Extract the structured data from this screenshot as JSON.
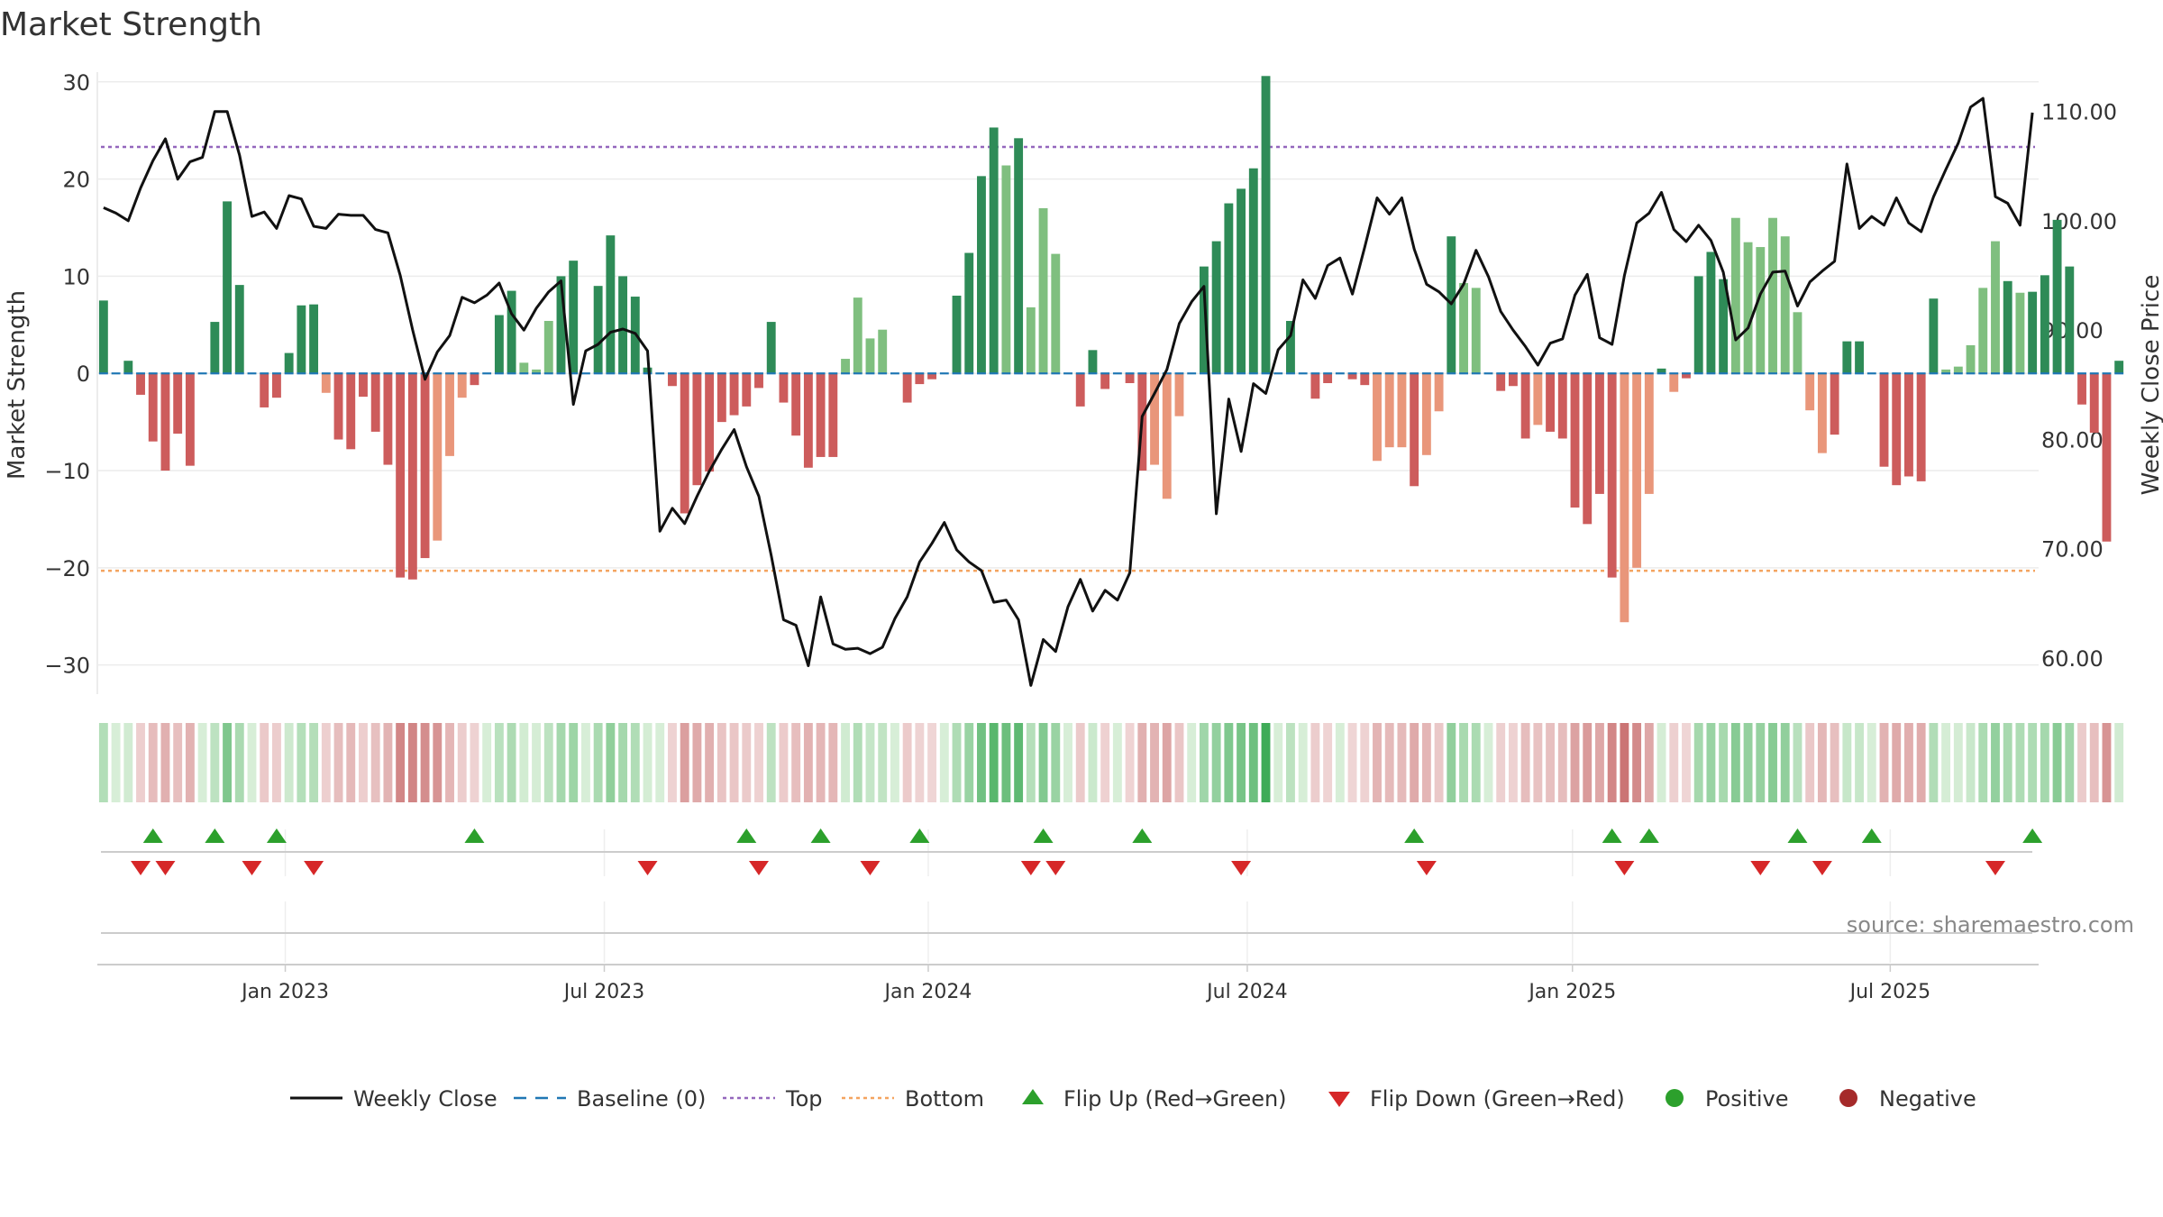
{
  "chart_data": {
    "type": "bar",
    "title": "Market Strength",
    "ylabel_left": "Market Strength",
    "ylabel_right": "Weekly Close Price",
    "left_ylim": [
      -33,
      31
    ],
    "left_yticks": [
      30,
      20,
      10,
      0,
      -10,
      -20,
      -30
    ],
    "left_ytick_labels": [
      "30",
      "20",
      "10",
      "0",
      "−10",
      "−20",
      "−30"
    ],
    "right_ylim": [
      56.7,
      113.6
    ],
    "right_yticks": [
      110,
      100,
      90,
      80,
      70,
      60
    ],
    "right_ytick_labels": [
      "110.00",
      "100.00",
      "90.00",
      "80.00",
      "70.00",
      "60.00"
    ],
    "x_start_index": 0,
    "x_end_index": 156,
    "x_ticks": [
      {
        "label": "Jan 2023",
        "index": 14.7
      },
      {
        "label": "Jul 2023",
        "index": 40.5
      },
      {
        "label": "Jan 2024",
        "index": 66.7
      },
      {
        "label": "Jul 2024",
        "index": 92.5
      },
      {
        "label": "Jan 2025",
        "index": 118.8
      },
      {
        "label": "Jul 2025",
        "index": 144.5
      }
    ],
    "top_line": 23.3,
    "bottom_line": -20.3,
    "baseline": 0,
    "colors": {
      "strong_pos": "#2e8b57",
      "weak_pos": "#7fbf7f",
      "strong_neg": "#cd5c5c",
      "weak_neg": "#e9967a",
      "close_line": "#111111",
      "baseline": "#1f77b4",
      "top": "#9467bd",
      "bottom": "#f4a460",
      "flip_up": "#2ca02c",
      "flip_down": "#d62728",
      "positive": "#2ca02c",
      "negative": "#a52a2a",
      "grid": "#ececec"
    },
    "strength": [
      7.5,
      0,
      1.3,
      -2.2,
      -7,
      -10,
      -6.2,
      -9.5,
      0,
      5.3,
      17.7,
      9.1,
      0,
      -3.5,
      -2.5,
      2.1,
      7,
      7.1,
      -2,
      -6.8,
      -7.8,
      -2.4,
      -6,
      -9.4,
      -21,
      -21.2,
      -19,
      -17.2,
      -8.5,
      -2.5,
      -1.2,
      0,
      6,
      8.5,
      1.1,
      0.4,
      5.4,
      10,
      11.6,
      0,
      9,
      14.2,
      10,
      7.9,
      0.6,
      0,
      -1.3,
      -14.4,
      -11.5,
      -10.1,
      -5,
      -4.3,
      -3.4,
      -1.5,
      5.3,
      -3,
      -6.4,
      -9.7,
      -8.6,
      -8.6,
      1.5,
      7.8,
      3.6,
      4.5,
      0,
      -3,
      -1.1,
      -0.6,
      0,
      8,
      12.4,
      20.3,
      25.3,
      21.4,
      24.2,
      6.8,
      17,
      12.3,
      0,
      -3.4,
      2.4,
      -1.6,
      0,
      -1,
      -10,
      -9.4,
      -12.9,
      -4.4,
      0,
      11,
      13.6,
      17.5,
      19,
      21.1,
      30.6,
      0,
      5.4,
      0,
      -2.6,
      -1,
      0,
      -0.6,
      -1.2,
      -9,
      -7.6,
      -7.6,
      -11.6,
      -8.4,
      -3.9,
      14.1,
      9.3,
      8.8,
      0,
      -1.8,
      -1.3,
      -6.7,
      -5.3,
      -6,
      -6.7,
      -13.8,
      -15.5,
      -12.4,
      -21,
      -25.6,
      -20,
      -12.4,
      0.5,
      -1.9,
      -0.5,
      10,
      12.5,
      9.7,
      16,
      13.5,
      13,
      16,
      14.1,
      6.3,
      -3.8,
      -8.2,
      -6.3,
      3.3,
      3.3,
      0,
      -9.6,
      -11.5,
      -10.6,
      -11.1,
      7.7,
      0.4,
      0.7,
      2.9,
      8.8,
      13.6,
      9.5,
      8.3,
      8.4,
      10.1,
      15.8,
      11,
      -3.2,
      -6.1,
      -17.3,
      1.3
    ],
    "weak": [
      18,
      27,
      28,
      29,
      34,
      35,
      36,
      60,
      61,
      62,
      63,
      73,
      75,
      76,
      77,
      85,
      86,
      87,
      103,
      104,
      105,
      107,
      108,
      110,
      111,
      116,
      123,
      124,
      125,
      127,
      132,
      133,
      134,
      135,
      136,
      137,
      138,
      139,
      149,
      150,
      151,
      152,
      153,
      155
    ],
    "close_points": [
      [
        0,
        101.2
      ],
      [
        1,
        100.7
      ],
      [
        2,
        100
      ],
      [
        3,
        103
      ],
      [
        4,
        105.5
      ],
      [
        5,
        107.5
      ],
      [
        6,
        103.8
      ],
      [
        7,
        105.4
      ],
      [
        8,
        105.8
      ],
      [
        9,
        110
      ],
      [
        10,
        110
      ],
      [
        11,
        106
      ],
      [
        12,
        100.4
      ],
      [
        13,
        100.8
      ],
      [
        14,
        99.3
      ],
      [
        15,
        102.3
      ],
      [
        16,
        102
      ],
      [
        17,
        99.5
      ],
      [
        18,
        99.3
      ],
      [
        19,
        100.6
      ],
      [
        20,
        100.5
      ],
      [
        21,
        100.5
      ],
      [
        22,
        99.2
      ],
      [
        23,
        98.9
      ],
      [
        24,
        95
      ],
      [
        25,
        90
      ],
      [
        26,
        85.5
      ],
      [
        27,
        88
      ],
      [
        28,
        89.5
      ],
      [
        29,
        93
      ],
      [
        30,
        92.5
      ],
      [
        31,
        93.2
      ],
      [
        32,
        94.3
      ],
      [
        33,
        91.5
      ],
      [
        34,
        90
      ],
      [
        35,
        92
      ],
      [
        36,
        93.5
      ],
      [
        37,
        94.5
      ],
      [
        38,
        83.2
      ],
      [
        39,
        88.1
      ],
      [
        40,
        88.7
      ],
      [
        41,
        89.8
      ],
      [
        42,
        90.1
      ],
      [
        43,
        89.7
      ],
      [
        44,
        88.1
      ],
      [
        45,
        71.6
      ],
      [
        46,
        73.7
      ],
      [
        47,
        72.3
      ],
      [
        48,
        74.8
      ],
      [
        49,
        77.1
      ],
      [
        50,
        79.1
      ],
      [
        51,
        80.9
      ],
      [
        52,
        77.5
      ],
      [
        53,
        74.8
      ],
      [
        54,
        69.4
      ],
      [
        55,
        63.5
      ],
      [
        56,
        63
      ],
      [
        57,
        59.3
      ],
      [
        58,
        65.6
      ],
      [
        59,
        61.3
      ],
      [
        60,
        60.8
      ],
      [
        61,
        60.9
      ],
      [
        62,
        60.4
      ],
      [
        63,
        61
      ],
      [
        64,
        63.6
      ],
      [
        65,
        65.6
      ],
      [
        66,
        68.8
      ],
      [
        67,
        70.5
      ],
      [
        68,
        72.4
      ],
      [
        69,
        69.9
      ],
      [
        70,
        68.8
      ],
      [
        71,
        68
      ],
      [
        72,
        65.1
      ],
      [
        73,
        65.3
      ],
      [
        74,
        63.5
      ],
      [
        75,
        57.5
      ],
      [
        76,
        61.7
      ],
      [
        77,
        60.6
      ],
      [
        78,
        64.7
      ],
      [
        79,
        67.2
      ],
      [
        80,
        64.3
      ],
      [
        81,
        66.2
      ],
      [
        82,
        65.3
      ],
      [
        83,
        67.8
      ],
      [
        84,
        82.1
      ],
      [
        85,
        84.2
      ],
      [
        86,
        86.4
      ],
      [
        87,
        90.6
      ],
      [
        88,
        92.6
      ],
      [
        89,
        94
      ],
      [
        90,
        73.2
      ],
      [
        91,
        83.7
      ],
      [
        92,
        78.9
      ],
      [
        93,
        85.1
      ],
      [
        94,
        84.2
      ],
      [
        95,
        88.2
      ],
      [
        96,
        89.5
      ],
      [
        97,
        94.6
      ],
      [
        98,
        92.9
      ],
      [
        99,
        95.9
      ],
      [
        100,
        96.6
      ],
      [
        101,
        93.3
      ],
      [
        102,
        97.6
      ],
      [
        103,
        102.1
      ],
      [
        104,
        100.6
      ],
      [
        105,
        102.1
      ],
      [
        106,
        97.4
      ],
      [
        107,
        94.2
      ],
      [
        108,
        93.5
      ],
      [
        109,
        92.4
      ],
      [
        110,
        94.2
      ],
      [
        111,
        97.3
      ],
      [
        112,
        94.9
      ],
      [
        113,
        91.7
      ],
      [
        114,
        90
      ],
      [
        115,
        88.5
      ],
      [
        116,
        86.8
      ],
      [
        117,
        88.8
      ],
      [
        118,
        89.2
      ],
      [
        119,
        93.2
      ],
      [
        120,
        95.1
      ],
      [
        121,
        89.3
      ],
      [
        122,
        88.7
      ],
      [
        123,
        95
      ],
      [
        124,
        99.8
      ],
      [
        125,
        100.7
      ],
      [
        126,
        102.6
      ],
      [
        127,
        99.2
      ],
      [
        128,
        98.1
      ],
      [
        129,
        99.6
      ],
      [
        130,
        98.2
      ],
      [
        131,
        95.3
      ],
      [
        132,
        89.1
      ],
      [
        133,
        90.2
      ],
      [
        134,
        93.3
      ],
      [
        135,
        95.3
      ],
      [
        136,
        95.4
      ],
      [
        137,
        92.2
      ],
      [
        138,
        94.4
      ],
      [
        139,
        95.4
      ],
      [
        140,
        96.3
      ],
      [
        141,
        105.2
      ],
      [
        142,
        99.3
      ],
      [
        143,
        100.4
      ],
      [
        144,
        99.6
      ],
      [
        145,
        102.1
      ],
      [
        146,
        99.8
      ],
      [
        147,
        99
      ],
      [
        148,
        102.2
      ],
      [
        149,
        104.7
      ],
      [
        150,
        107.1
      ],
      [
        151,
        110.4
      ],
      [
        152,
        111.2
      ],
      [
        153,
        102.2
      ],
      [
        154,
        101.6
      ],
      [
        155,
        99.6
      ],
      [
        156,
        109.9
      ]
    ],
    "flip_up": [
      4,
      9,
      14,
      30,
      52,
      58,
      66,
      76,
      84,
      106,
      122,
      125,
      137,
      143,
      156
    ],
    "flip_down": [
      3,
      5,
      12,
      17,
      44,
      53,
      62,
      75,
      77,
      92,
      107,
      123,
      134,
      139,
      153
    ],
    "legend": [
      {
        "label": "Weekly Close",
        "kind": "line"
      },
      {
        "label": "Baseline (0)",
        "kind": "dashed"
      },
      {
        "label": "Top",
        "kind": "dotted-top"
      },
      {
        "label": "Bottom",
        "kind": "dotted-bottom"
      },
      {
        "label": "Flip Up (Red→Green)",
        "kind": "up"
      },
      {
        "label": "Flip Down (Green→Red)",
        "kind": "down"
      },
      {
        "label": "Positive",
        "kind": "pos"
      },
      {
        "label": "Negative",
        "kind": "neg"
      }
    ],
    "source": "source: sharemaestro.com"
  }
}
